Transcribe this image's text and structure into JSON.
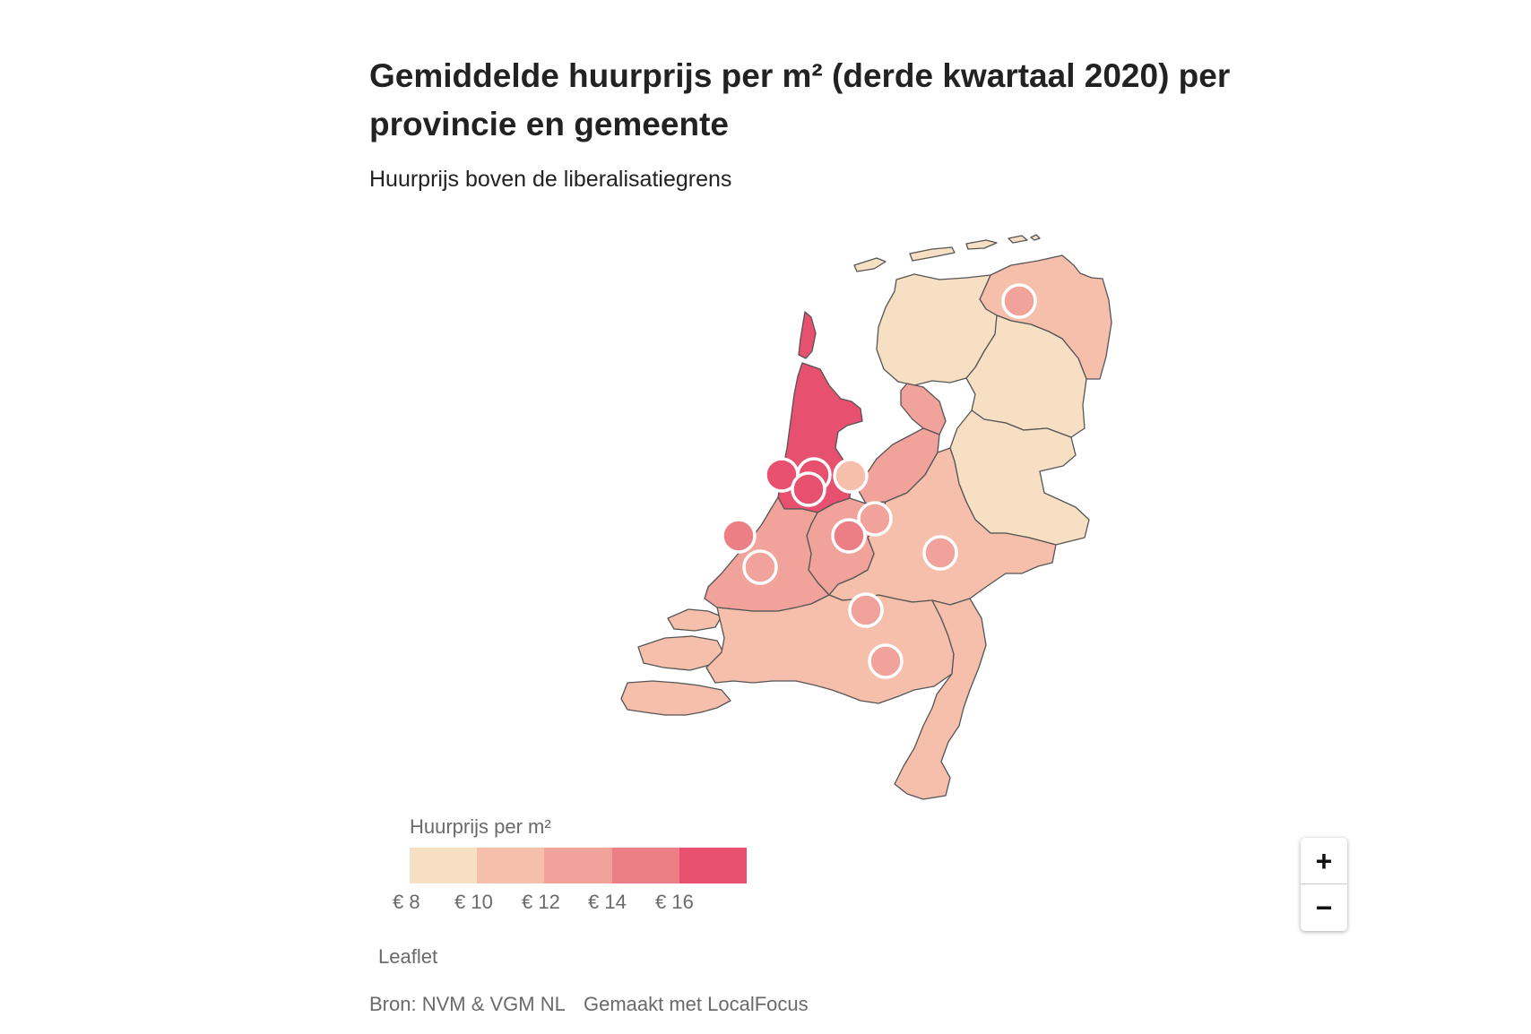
{
  "header": {
    "title": "Gemiddelde huurprijs per m² (derde kwartaal 2020) per provincie en gemeente",
    "subtitle": "Huurprijs boven de liberalisatiegrens"
  },
  "legend": {
    "title": "Huurprijs per m²",
    "colors": [
      "#f7dfc4",
      "#f5bfac",
      "#f0a29b",
      "#ec7f85",
      "#e8506f"
    ],
    "ticks": [
      "€ 8",
      "€ 10",
      "€ 12",
      "€ 14",
      "€ 16"
    ]
  },
  "zoom": {
    "in_label": "+",
    "out_label": "−"
  },
  "attribution": "Leaflet",
  "footer": {
    "source": "Bron: NVM & VGM NL",
    "made_with": "Gemaakt met LocalFocus"
  },
  "colors": {
    "tier1": "#f7dfc4",
    "tier2": "#f5bfac",
    "tier3": "#f0a29b",
    "tier4": "#ec7f85",
    "tier5": "#e8506f",
    "border": "#555555"
  }
}
